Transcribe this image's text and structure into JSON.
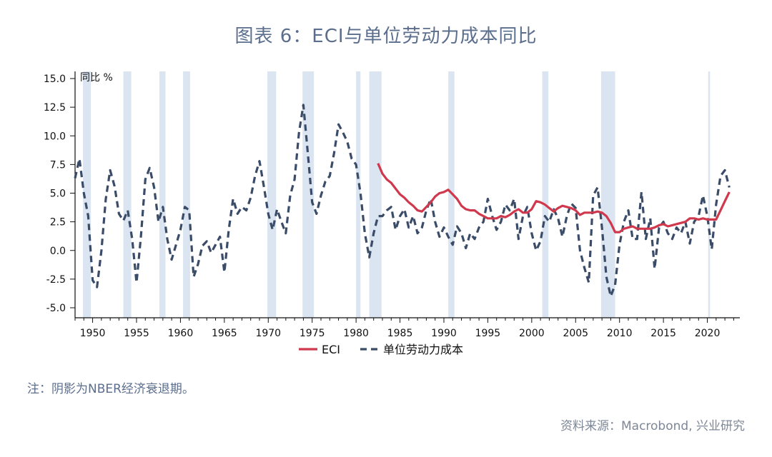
{
  "title": "图表 6：ECI与单位劳动力成本同比",
  "note": "注：阴影为NBER经济衰退期。",
  "source": "资料来源：Macrobond, 兴业研究",
  "chart_data": {
    "type": "line",
    "ylabel": "同比 %",
    "xlim": [
      1948,
      2023.7
    ],
    "ylim": [
      -5,
      15
    ],
    "y_ticks": [
      "15.0",
      "12.5",
      "10.0",
      "7.5",
      "5.0",
      "2.5",
      "0.0",
      "-2.5",
      "-5.0"
    ],
    "x_ticks": [
      "1950",
      "1955",
      "1960",
      "1965",
      "1970",
      "1975",
      "1980",
      "1985",
      "1990",
      "1995",
      "2000",
      "2005",
      "2010",
      "2015",
      "2020"
    ],
    "recessions": [
      [
        1948.9,
        1949.8
      ],
      [
        1953.5,
        1954.4
      ],
      [
        1957.6,
        1958.3
      ],
      [
        1960.3,
        1961.1
      ],
      [
        1969.9,
        1970.9
      ],
      [
        1973.9,
        1975.2
      ],
      [
        1980.0,
        1980.5
      ],
      [
        1981.5,
        1982.9
      ],
      [
        1990.5,
        1991.2
      ],
      [
        2001.2,
        2001.9
      ],
      [
        2007.9,
        2009.5
      ],
      [
        2020.1,
        2020.3
      ]
    ],
    "recession_color": "#dbe5f1",
    "series": [
      {
        "name": "ECI",
        "color": "#d0384d",
        "style": "solid",
        "x": [
          1982.5,
          1983.0,
          1983.5,
          1984.0,
          1984.5,
          1985.0,
          1985.5,
          1986.0,
          1986.5,
          1987.0,
          1987.5,
          1988.0,
          1988.5,
          1989.0,
          1989.5,
          1990.0,
          1990.5,
          1991.0,
          1991.5,
          1992.0,
          1992.5,
          1993.0,
          1993.5,
          1994.0,
          1994.5,
          1995.0,
          1995.5,
          1996.0,
          1996.5,
          1997.0,
          1997.5,
          1998.0,
          1998.5,
          1999.0,
          1999.5,
          2000.0,
          2000.5,
          2001.0,
          2001.5,
          2002.0,
          2002.5,
          2003.0,
          2003.5,
          2004.0,
          2004.5,
          2005.0,
          2005.5,
          2006.0,
          2006.5,
          2007.0,
          2007.5,
          2008.0,
          2008.5,
          2009.0,
          2009.5,
          2010.0,
          2010.5,
          2011.0,
          2011.5,
          2012.0,
          2012.5,
          2013.0,
          2013.5,
          2014.0,
          2014.5,
          2015.0,
          2015.5,
          2016.0,
          2016.5,
          2017.0,
          2017.5,
          2018.0,
          2018.5,
          2019.0,
          2019.5,
          2020.0,
          2020.5,
          2021.0,
          2021.5,
          2022.0,
          2022.5
        ],
        "y": [
          7.6,
          6.7,
          6.2,
          5.9,
          5.4,
          4.9,
          4.6,
          4.2,
          3.9,
          3.5,
          3.4,
          3.8,
          4.2,
          4.7,
          5.0,
          5.1,
          5.3,
          4.9,
          4.5,
          3.9,
          3.6,
          3.5,
          3.5,
          3.2,
          3.0,
          2.8,
          2.8,
          2.8,
          3.0,
          2.9,
          3.1,
          3.4,
          3.6,
          3.3,
          3.3,
          3.6,
          4.3,
          4.2,
          4.0,
          3.7,
          3.4,
          3.7,
          3.9,
          3.8,
          3.7,
          3.5,
          3.1,
          3.3,
          3.3,
          3.3,
          3.4,
          3.3,
          3.0,
          2.4,
          1.6,
          1.6,
          1.9,
          2.0,
          2.1,
          1.9,
          1.9,
          1.9,
          1.9,
          2.0,
          2.2,
          2.3,
          2.1,
          2.2,
          2.3,
          2.4,
          2.5,
          2.8,
          2.8,
          2.7,
          2.8,
          2.7,
          2.7,
          2.7,
          3.5,
          4.3,
          5.1
        ]
      },
      {
        "name": "单位劳动力成本",
        "color": "#3b4c68",
        "style": "dashed",
        "x": [
          1948.0,
          1948.5,
          1949.0,
          1949.5,
          1950.0,
          1950.5,
          1951.0,
          1951.5,
          1952.0,
          1952.5,
          1953.0,
          1953.5,
          1954.0,
          1954.5,
          1955.0,
          1955.5,
          1956.0,
          1956.5,
          1957.0,
          1957.5,
          1958.0,
          1958.5,
          1959.0,
          1959.5,
          1960.0,
          1960.5,
          1961.0,
          1961.5,
          1962.0,
          1962.5,
          1963.0,
          1963.5,
          1964.0,
          1964.5,
          1965.0,
          1965.5,
          1966.0,
          1966.5,
          1967.0,
          1967.5,
          1968.0,
          1968.5,
          1969.0,
          1969.5,
          1970.0,
          1970.5,
          1971.0,
          1971.5,
          1972.0,
          1972.5,
          1973.0,
          1973.5,
          1974.0,
          1974.5,
          1975.0,
          1975.5,
          1976.0,
          1976.5,
          1977.0,
          1977.5,
          1978.0,
          1978.5,
          1979.0,
          1979.5,
          1980.0,
          1980.5,
          1981.0,
          1981.5,
          1982.0,
          1982.5,
          1983.0,
          1983.5,
          1984.0,
          1984.5,
          1985.0,
          1985.5,
          1986.0,
          1986.5,
          1987.0,
          1987.5,
          1988.0,
          1988.5,
          1989.0,
          1989.5,
          1990.0,
          1990.5,
          1991.0,
          1991.5,
          1992.0,
          1992.5,
          1993.0,
          1993.5,
          1994.0,
          1994.5,
          1995.0,
          1995.5,
          1996.0,
          1996.5,
          1997.0,
          1997.5,
          1998.0,
          1998.5,
          1999.0,
          1999.5,
          2000.0,
          2000.5,
          2001.0,
          2001.5,
          2002.0,
          2002.5,
          2003.0,
          2003.5,
          2004.0,
          2004.5,
          2005.0,
          2005.5,
          2006.0,
          2006.5,
          2007.0,
          2007.5,
          2008.0,
          2008.5,
          2009.0,
          2009.5,
          2010.0,
          2010.5,
          2011.0,
          2011.5,
          2012.0,
          2012.5,
          2013.0,
          2013.5,
          2014.0,
          2014.5,
          2015.0,
          2015.5,
          2016.0,
          2016.5,
          2017.0,
          2017.5,
          2018.0,
          2018.5,
          2019.0,
          2019.5,
          2020.0,
          2020.5,
          2021.0,
          2021.5,
          2022.0,
          2022.5
        ],
        "y": [
          6.3,
          8.0,
          5.0,
          3.0,
          -2.6,
          -3.2,
          0.0,
          4.5,
          7.0,
          5.6,
          3.2,
          2.6,
          3.5,
          1.0,
          -2.8,
          1.2,
          6.2,
          7.2,
          5.5,
          2.5,
          3.8,
          1.0,
          -0.8,
          0.5,
          1.8,
          3.8,
          3.5,
          -2.3,
          -1.2,
          0.4,
          0.8,
          -0.2,
          0.5,
          1.2,
          -1.9,
          1.8,
          4.5,
          3.2,
          3.8,
          3.5,
          4.6,
          6.5,
          7.8,
          5.6,
          3.2,
          1.8,
          3.6,
          2.5,
          1.5,
          4.8,
          6.2,
          10.3,
          12.7,
          8.5,
          4.2,
          3.2,
          4.8,
          6.0,
          6.5,
          8.5,
          11.0,
          10.3,
          9.5,
          8.0,
          7.5,
          5.0,
          1.5,
          -0.6,
          1.5,
          3.0,
          3.0,
          3.5,
          3.8,
          1.8,
          3.0,
          3.6,
          2.0,
          3.0,
          1.5,
          2.0,
          3.5,
          4.5,
          2.5,
          1.2,
          2.0,
          1.2,
          0.5,
          2.1,
          1.5,
          0.2,
          1.5,
          1.0,
          2.0,
          2.5,
          4.5,
          3.0,
          1.8,
          2.5,
          4.0,
          3.5,
          4.5,
          1.0,
          3.0,
          3.8,
          1.5,
          0.0,
          0.8,
          3.0,
          2.5,
          3.6,
          2.8,
          1.2,
          3.0,
          4.1,
          3.7,
          0.0,
          -1.5,
          -2.8,
          4.8,
          5.5,
          2.0,
          -2.3,
          -4.0,
          -3.0,
          0.5,
          2.5,
          3.5,
          1.0,
          1.0,
          5.1,
          1.0,
          2.8,
          -1.6,
          2.0,
          2.5,
          1.5,
          1.0,
          2.0,
          1.5,
          2.5,
          0.6,
          2.5,
          3.0,
          4.8,
          3.0,
          0.1,
          4.0,
          6.5,
          7.0,
          5.5
        ]
      }
    ]
  }
}
